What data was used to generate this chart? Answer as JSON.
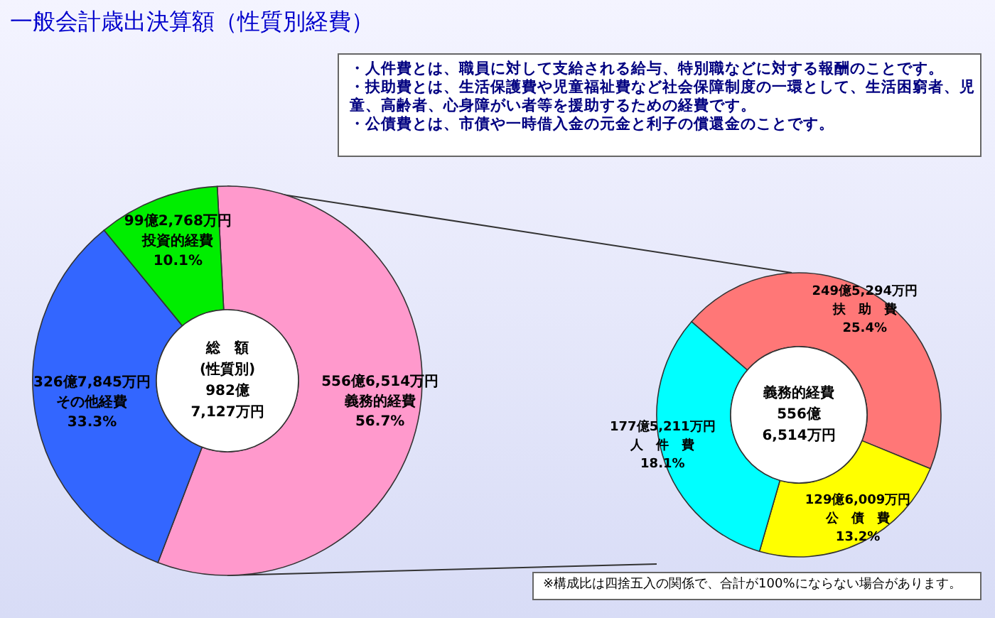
{
  "chart_data": [
    {
      "type": "donut",
      "title": "一般会計歳出決算額（性質別経費）",
      "categories": [
        "義務的経費",
        "その他経費",
        "投資的経費"
      ],
      "values": [
        56.7,
        33.3,
        10.1
      ],
      "colors": [
        "#ff99cc",
        "#3366ff",
        "#00ee00"
      ],
      "value_labels": [
        "56.7%",
        "33.3%",
        "10.1%"
      ],
      "annotations": [
        "総　額\n(性質別)\n982億\n7,127万円",
        "・人件費とは、職員に対して支給される給与、特別職などに対する報酬のことです。",
        "・扶助費とは、生活保護費や児童福祉費など社会保障制度の一環として、生活困窮者、児童、高齢者、心身障がい者等を援助するための経費です。",
        "・公債費とは、市債や一時借入金の元金と利子の償還金のことです。",
        {
          "text": "556億6,514万円",
          "x": "義務的経費"
        },
        {
          "text": "326億7,845万円",
          "x": "その他経費"
        },
        {
          "text": "99億2,768万円",
          "x": "投資的経費"
        }
      ]
    },
    {
      "type": "donut",
      "categories": [
        "扶　助　費",
        "公　債　費",
        "人　件　費"
      ],
      "values": [
        25.4,
        13.2,
        18.1
      ],
      "colors": [
        "#ff7777",
        "#ffff00",
        "#00ffff"
      ],
      "value_labels": [
        "25.4%",
        "13.2%",
        "18.1%"
      ],
      "annotations": [
        "義務的経費\n556億\n6,514万円",
        "※構成比は四捨五入の関係で、合計が100%にならない場合があります。",
        {
          "text": "249億5,294万円",
          "x": "扶　助　費"
        },
        {
          "text": "129億6,009万円",
          "x": "公　債　費"
        },
        {
          "text": "177億5,211万円",
          "x": "人　件　費"
        }
      ]
    }
  ]
}
